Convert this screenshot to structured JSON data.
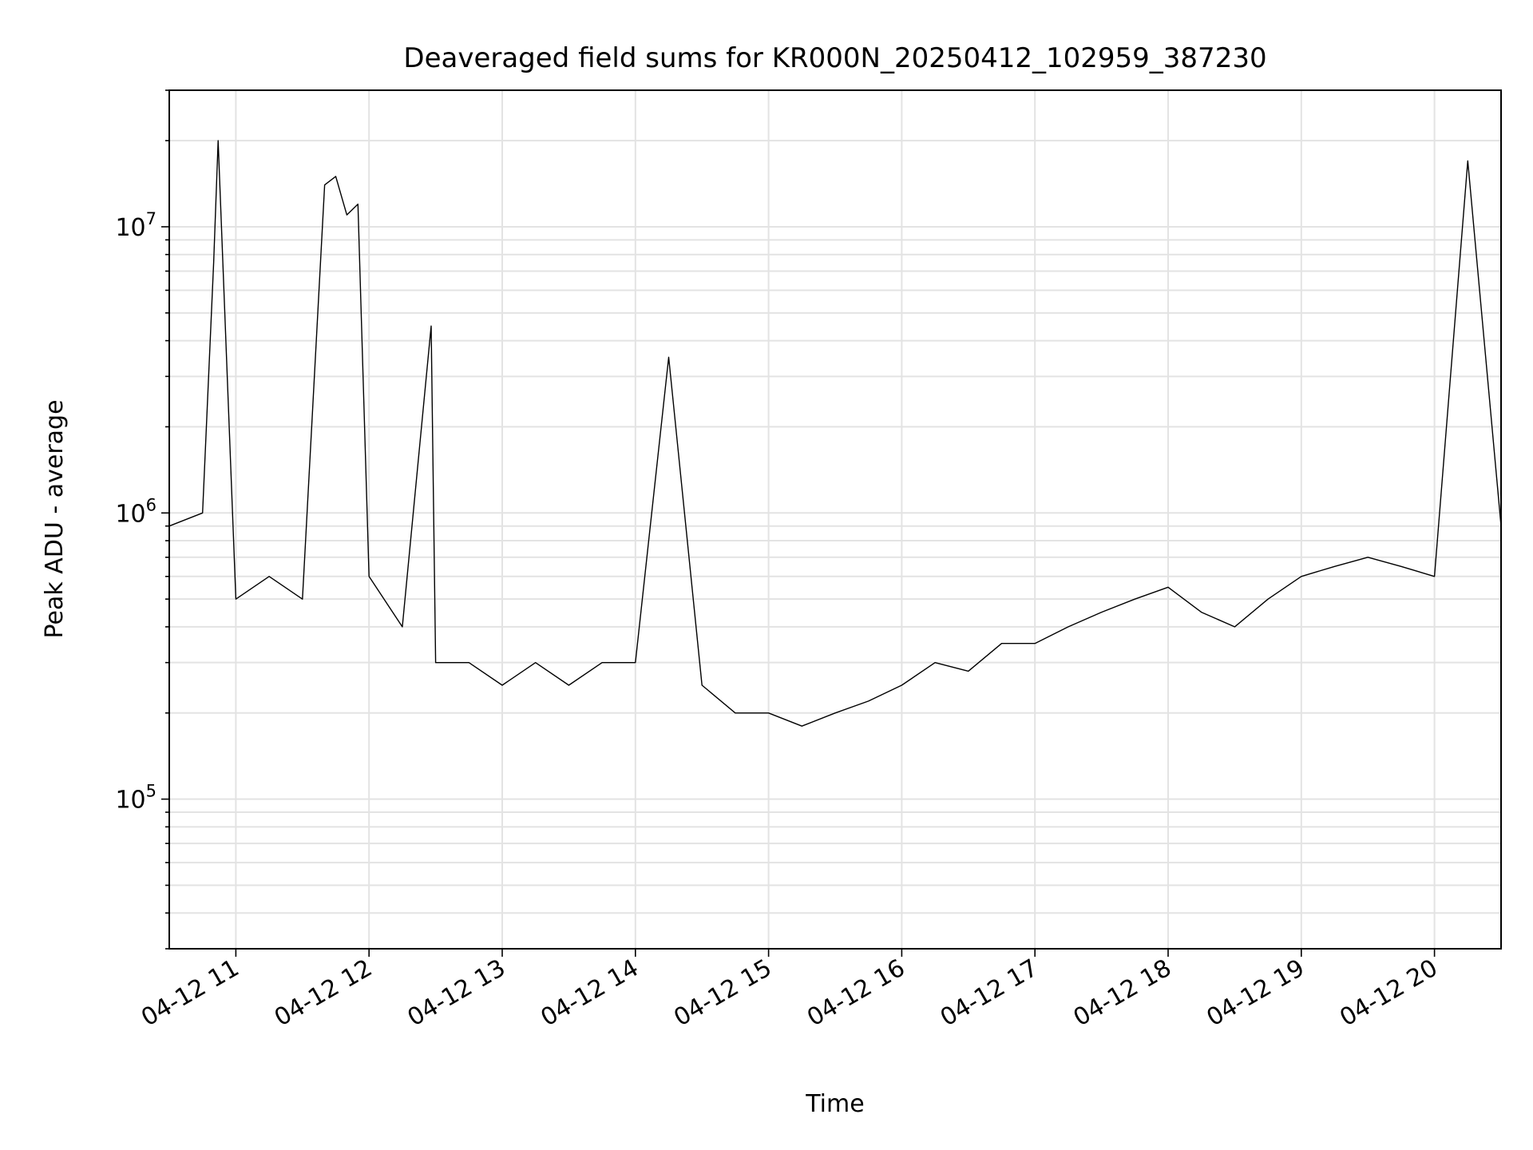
{
  "chart_data": {
    "type": "line",
    "title": "Deaveraged field sums for KR000N_20250412_102959_387230",
    "xlabel": "Time",
    "ylabel": "Peak ADU - average",
    "y_scale": "log",
    "ylim": [
      30000,
      30000000
    ],
    "xlim": [
      "2025-04-12 10:30",
      "2025-04-12 20:30"
    ],
    "x_tick_labels": [
      "04-12 11",
      "04-12 12",
      "04-12 13",
      "04-12 14",
      "04-12 15",
      "04-12 16",
      "04-12 17",
      "04-12 18",
      "04-12 19",
      "04-12 20"
    ],
    "y_tick_labels": [
      {
        "base": "10",
        "exp": "5"
      },
      {
        "base": "10",
        "exp": "6"
      },
      {
        "base": "10",
        "exp": "7"
      }
    ],
    "grid": true,
    "line_color": "#000000",
    "series": [
      {
        "x": [
          "2025-04-12 10:30",
          "2025-04-12 10:45",
          "2025-04-12 10:50",
          "2025-04-12 10:52",
          "2025-04-12 11:00",
          "2025-04-12 11:15",
          "2025-04-12 11:30",
          "2025-04-12 11:40",
          "2025-04-12 11:45",
          "2025-04-12 11:50",
          "2025-04-12 11:55",
          "2025-04-12 12:00",
          "2025-04-12 12:15",
          "2025-04-12 12:28",
          "2025-04-12 12:30",
          "2025-04-12 12:45",
          "2025-04-12 13:00",
          "2025-04-12 13:15",
          "2025-04-12 13:30",
          "2025-04-12 13:45",
          "2025-04-12 14:00",
          "2025-04-12 14:15",
          "2025-04-12 14:30",
          "2025-04-12 14:45",
          "2025-04-12 15:00",
          "2025-04-12 15:15",
          "2025-04-12 15:30",
          "2025-04-12 15:45",
          "2025-04-12 16:00",
          "2025-04-12 16:15",
          "2025-04-12 16:30",
          "2025-04-12 16:45",
          "2025-04-12 17:00",
          "2025-04-12 17:15",
          "2025-04-12 17:30",
          "2025-04-12 17:45",
          "2025-04-12 18:00",
          "2025-04-12 18:15",
          "2025-04-12 18:30",
          "2025-04-12 18:45",
          "2025-04-12 19:00",
          "2025-04-12 19:15",
          "2025-04-12 19:30",
          "2025-04-12 19:45",
          "2025-04-12 20:00",
          "2025-04-12 20:15",
          "2025-04-12 20:30"
        ],
        "y": [
          900000,
          1000000,
          7500000,
          20000000,
          500000,
          600000,
          500000,
          14000000,
          15000000,
          11000000,
          12000000,
          600000,
          400000,
          4500000,
          300000,
          300000,
          250000,
          300000,
          250000,
          300000,
          300000,
          3500000,
          250000,
          200000,
          200000,
          180000,
          200000,
          220000,
          250000,
          300000,
          280000,
          350000,
          350000,
          400000,
          450000,
          500000,
          550000,
          450000,
          400000,
          500000,
          600000,
          650000,
          700000,
          650000,
          600000,
          17000000,
          900000
        ]
      }
    ]
  }
}
